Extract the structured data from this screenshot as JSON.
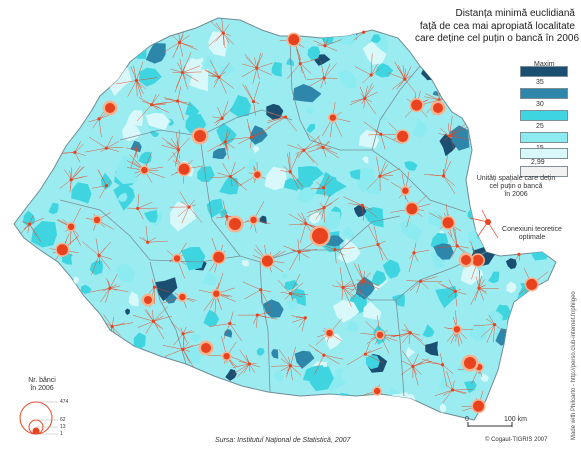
{
  "title_lines": [
    "Distanța minimă euclidiană",
    "față de cea mai apropiată localitate",
    "care deține cel puțin o bancă în 2006"
  ],
  "legend": {
    "heading": "Maxim",
    "classes": [
      {
        "label": "35",
        "color": "#1b4f72"
      },
      {
        "label": "30",
        "color": "#2e86ab"
      },
      {
        "label": "25",
        "color": "#3fd5e0"
      },
      {
        "label": "15",
        "color": "#8bebf0"
      },
      {
        "label": "2,99",
        "color": "#d9f8fa"
      }
    ],
    "bank_units": {
      "label_lines": [
        "Unități spațiale care dețin",
        "cel puțin o bancă",
        "în 2006"
      ],
      "color": "#f2f2f2"
    },
    "connections": {
      "label_lines": [
        "Conexiuni teoretice",
        "optimale"
      ],
      "color": "#e8431e"
    },
    "circle_size": {
      "title_lines": [
        "Nr. bănci",
        "în 2006"
      ],
      "values": [
        "474",
        "62",
        "13",
        "1"
      ]
    }
  },
  "scale": {
    "start": "0",
    "end": "100 km"
  },
  "source": "Sursa: Institutul Național de Statistică, 2007",
  "copyright": "© Cogaut-TIGRIS 2007",
  "made_with": "Made with Philcarto - http://perso.club-internet.fr/philgeo"
}
